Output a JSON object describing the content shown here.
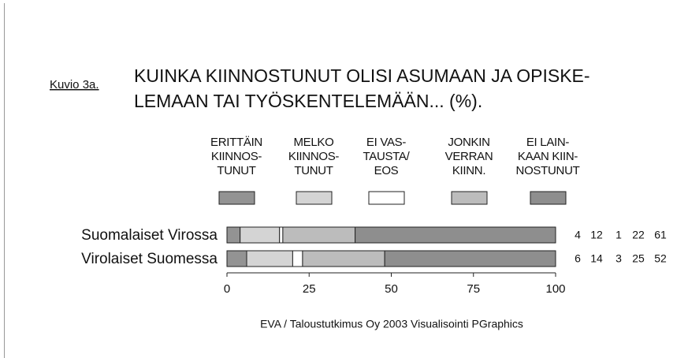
{
  "chart_data": {
    "type": "stacked-bar-horizontal",
    "label": "Kuvio 3a.",
    "title": "KUINKA KIINNOSTUNUT OLISI ASUMAAN JA OPISKE-\nLEMAAN TAI TYÖSKENTELEMÄÄN... (%).",
    "categories": [
      "Suomalaiset Virossa",
      "Virolaiset Suomessa"
    ],
    "series": [
      {
        "name": "ERITTÄIN\nKIINNOS-\nTUNUT",
        "color": "#939393",
        "values": [
          4,
          6
        ]
      },
      {
        "name": "MELKO\nKIINNOS-\nTUNUT",
        "color": "#d4d4d4",
        "values": [
          12,
          14
        ]
      },
      {
        "name": "EI VAS-\nTAUSTA/\nEOS",
        "color": "#ffffff",
        "values": [
          1,
          3
        ]
      },
      {
        "name": "JONKIN\nVERRAN\nKIINN.",
        "color": "#bcbcbc",
        "values": [
          22,
          25
        ]
      },
      {
        "name": "EI LAIN-\nKAAN KIIN-\nNOSTUNUT",
        "color": "#8e8e8e",
        "values": [
          61,
          52
        ]
      }
    ],
    "xlim": [
      0,
      100
    ],
    "xticks": [
      0,
      25,
      50,
      75,
      100
    ],
    "source": "EVA / Taloustutkimus Oy 2003  Visualisointi PGraphics"
  }
}
